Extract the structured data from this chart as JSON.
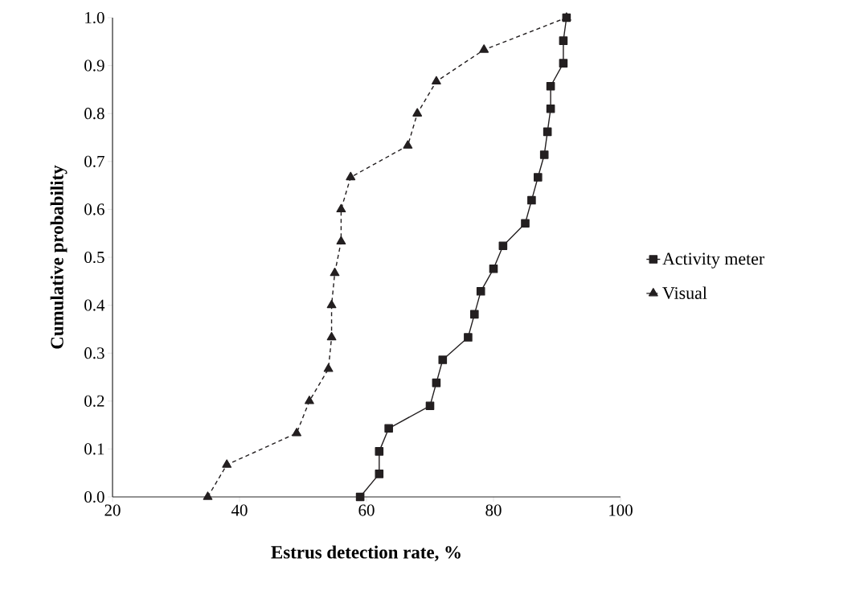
{
  "chart_data": {
    "type": "line",
    "xlabel": "Estrus detection rate, %",
    "ylabel": "Cumulative probability",
    "xlim": [
      20,
      100
    ],
    "xticks": [
      20,
      40,
      60,
      80,
      100
    ],
    "ylim": [
      0,
      1
    ],
    "yticks": [
      {
        "value": 0,
        "label": "0.0"
      },
      {
        "value": 0.1,
        "label": "0.1"
      },
      {
        "value": 0.2,
        "label": "0.2"
      },
      {
        "value": 0.3,
        "label": "0.3"
      },
      {
        "value": 0.4,
        "label": "0.4"
      },
      {
        "value": 0.5,
        "label": "0.5"
      },
      {
        "value": 0.6,
        "label": "0.6"
      },
      {
        "value": 0.7,
        "label": "0.7"
      },
      {
        "value": 0.8,
        "label": "0.8"
      },
      {
        "value": 0.9,
        "label": "0.9"
      },
      {
        "value": 1,
        "label": "1.0"
      }
    ],
    "grid": false,
    "legend": "right",
    "series": [
      {
        "name": "Activity meter",
        "color": "#231f20",
        "marker": "square",
        "line_style": "solid",
        "x": [
          59,
          62,
          62,
          63.5,
          70,
          71,
          72,
          76,
          77,
          78,
          80,
          81.5,
          85,
          86,
          87,
          88,
          88.5,
          89,
          89,
          91,
          91,
          91.5
        ],
        "values": [
          0,
          0.048,
          0.095,
          0.143,
          0.19,
          0.238,
          0.286,
          0.333,
          0.381,
          0.429,
          0.476,
          0.524,
          0.571,
          0.619,
          0.667,
          0.714,
          0.762,
          0.81,
          0.857,
          0.905,
          0.952,
          1.0
        ]
      },
      {
        "name": "Visual",
        "color": "#231f20",
        "marker": "triangle",
        "line_style": "dashed",
        "x": [
          35,
          38,
          49,
          51,
          54,
          54.5,
          54.5,
          55,
          56,
          56,
          57.5,
          66.5,
          68,
          71,
          78.5,
          91.5
        ],
        "values": [
          0,
          0.067,
          0.133,
          0.2,
          0.267,
          0.333,
          0.4,
          0.467,
          0.533,
          0.6,
          0.667,
          0.733,
          0.8,
          0.867,
          0.933,
          1.0
        ]
      }
    ]
  }
}
